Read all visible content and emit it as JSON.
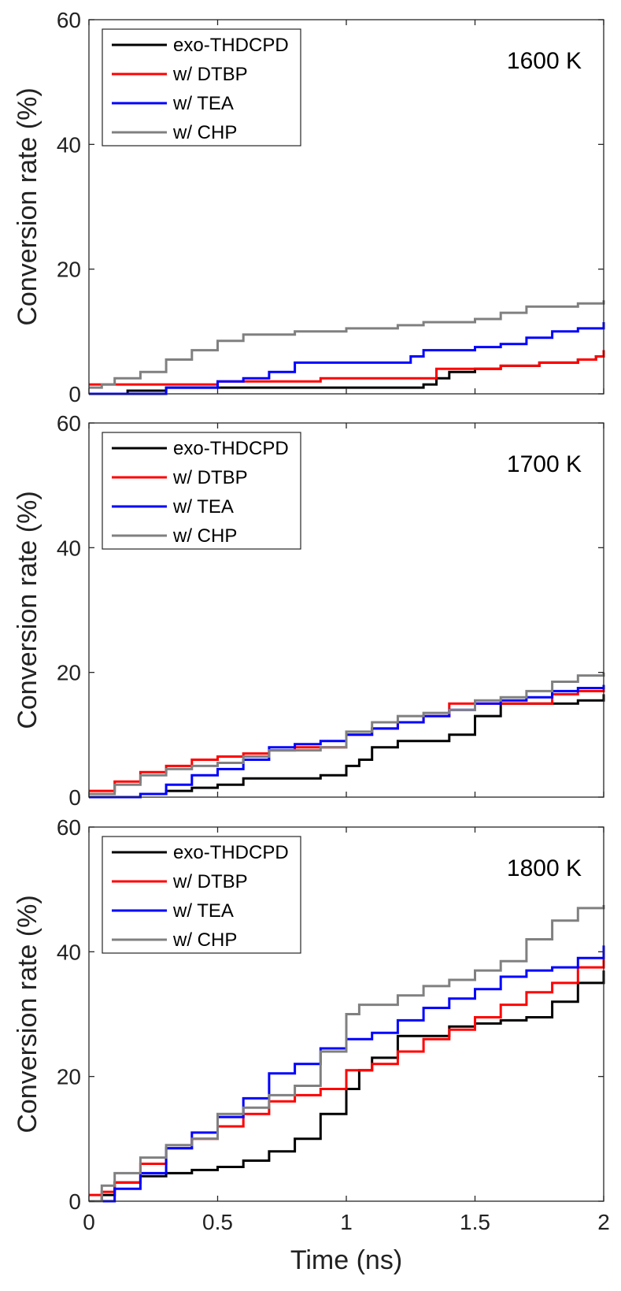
{
  "figure": {
    "colors": {
      "exo_thdcpd": "#000000",
      "dtbp": "#ff0000",
      "tea": "#0000ff",
      "chp": "#808080",
      "axis": "#262626"
    }
  },
  "chart_data": [
    {
      "type": "line",
      "title": "1600 K",
      "xlabel": "",
      "ylabel": "Conversion rate (%)",
      "xlim": [
        0,
        2
      ],
      "ylim": [
        0,
        60
      ],
      "xticks": [
        0,
        0.5,
        1,
        1.5,
        2
      ],
      "xtick_labels": [],
      "yticks": [
        0,
        20,
        40,
        60
      ],
      "ytick_labels": [
        "0",
        "20",
        "40",
        "60"
      ],
      "legend_position": "top-left",
      "series": [
        {
          "name": "exo-THDCPD",
          "color": "#000000",
          "x": [
            0,
            0.05,
            0.15,
            0.3,
            0.45,
            0.6,
            0.9,
            1.2,
            1.3,
            1.35,
            1.4,
            1.5,
            1.6,
            1.75,
            1.9,
            1.97,
            2.0
          ],
          "y": [
            0,
            0,
            0.5,
            1,
            1,
            1,
            1,
            1,
            1.5,
            2.5,
            3.5,
            4,
            4.5,
            5,
            5.5,
            6,
            7
          ]
        },
        {
          "name": "w/ DTBP",
          "color": "#ff0000",
          "x": [
            0,
            0.1,
            0.3,
            0.5,
            0.7,
            0.9,
            1.0,
            1.3,
            1.35,
            1.5,
            1.6,
            1.75,
            1.9,
            1.97,
            2.0
          ],
          "y": [
            1.5,
            1.5,
            1.5,
            2,
            2,
            2.5,
            2.5,
            2.5,
            4,
            4,
            4.5,
            5,
            5.5,
            6,
            7
          ]
        },
        {
          "name": "w/ TEA",
          "color": "#0000ff",
          "x": [
            0,
            0.2,
            0.3,
            0.5,
            0.6,
            0.7,
            0.8,
            1.0,
            1.15,
            1.25,
            1.3,
            1.5,
            1.6,
            1.7,
            1.8,
            1.9,
            2.0
          ],
          "y": [
            0,
            0,
            1,
            2,
            2.5,
            3.5,
            5,
            5,
            5,
            6,
            7,
            7.5,
            8,
            9,
            10,
            10.5,
            11.5
          ]
        },
        {
          "name": "w/ CHP",
          "color": "#808080",
          "x": [
            0,
            0.05,
            0.1,
            0.2,
            0.3,
            0.4,
            0.5,
            0.6,
            0.8,
            1.0,
            1.2,
            1.3,
            1.5,
            1.6,
            1.7,
            1.8,
            1.9,
            2.0
          ],
          "y": [
            1,
            1.5,
            2.5,
            3.5,
            5.5,
            7,
            8.5,
            9.5,
            10,
            10.5,
            11,
            11.5,
            12,
            13,
            14,
            14,
            14.5,
            15
          ]
        }
      ]
    },
    {
      "type": "line",
      "title": "1700 K",
      "xlabel": "",
      "ylabel": "Conversion rate (%)",
      "xlim": [
        0,
        2
      ],
      "ylim": [
        0,
        60
      ],
      "xticks": [
        0,
        0.5,
        1,
        1.5,
        2
      ],
      "xtick_labels": [],
      "yticks": [
        0,
        20,
        40,
        60
      ],
      "ytick_labels": [
        "0",
        "20",
        "40",
        "60"
      ],
      "legend_position": "top-left",
      "series": [
        {
          "name": "exo-THDCPD",
          "color": "#000000",
          "x": [
            0,
            0.15,
            0.2,
            0.3,
            0.4,
            0.5,
            0.6,
            0.7,
            0.85,
            0.9,
            1.0,
            1.05,
            1.1,
            1.2,
            1.3,
            1.4,
            1.5,
            1.6,
            1.7,
            1.8,
            1.9,
            2.0
          ],
          "y": [
            0,
            0,
            0.5,
            1,
            1.5,
            2,
            3,
            3,
            3,
            3.5,
            5,
            6,
            8,
            9,
            9,
            10,
            13,
            15,
            15,
            15,
            15.5,
            16.5
          ]
        },
        {
          "name": "w/ DTBP",
          "color": "#ff0000",
          "x": [
            0,
            0.1,
            0.2,
            0.3,
            0.4,
            0.5,
            0.6,
            0.7,
            0.8,
            0.9,
            1.0,
            1.1,
            1.2,
            1.3,
            1.4,
            1.5,
            1.6,
            1.7,
            1.8,
            1.9,
            2.0
          ],
          "y": [
            1,
            2.5,
            4,
            5,
            6,
            6.5,
            7,
            7.5,
            8,
            8,
            10,
            11,
            12,
            13,
            15,
            15,
            15,
            15,
            16.5,
            17,
            17.5
          ]
        },
        {
          "name": "w/ TEA",
          "color": "#0000ff",
          "x": [
            0,
            0.1,
            0.2,
            0.3,
            0.4,
            0.5,
            0.6,
            0.7,
            0.8,
            0.9,
            1.0,
            1.1,
            1.2,
            1.3,
            1.4,
            1.5,
            1.6,
            1.7,
            1.8,
            1.9,
            2.0
          ],
          "y": [
            0,
            0,
            0.5,
            2,
            3.5,
            4.5,
            6,
            8,
            8.5,
            9,
            10,
            11,
            12,
            13,
            14,
            15,
            15.5,
            16,
            17,
            17.5,
            18
          ]
        },
        {
          "name": "w/ CHP",
          "color": "#808080",
          "x": [
            0,
            0.1,
            0.2,
            0.3,
            0.4,
            0.5,
            0.6,
            0.7,
            0.8,
            0.9,
            1.0,
            1.1,
            1.2,
            1.3,
            1.4,
            1.5,
            1.6,
            1.7,
            1.8,
            1.9,
            2.0
          ],
          "y": [
            0.5,
            2,
            3.5,
            4.5,
            5,
            5.5,
            6.5,
            7.5,
            7.5,
            8,
            10.5,
            12,
            13,
            13.5,
            14,
            15.5,
            16,
            17,
            18.5,
            19.5,
            20
          ]
        }
      ]
    },
    {
      "type": "line",
      "title": "1800 K",
      "xlabel": "Time (ns)",
      "ylabel": "Conversion rate (%)",
      "xlim": [
        0,
        2
      ],
      "ylim": [
        0,
        60
      ],
      "xticks": [
        0,
        0.5,
        1,
        1.5,
        2
      ],
      "xtick_labels": [
        "0",
        "0.5",
        "1",
        "1.5",
        "2"
      ],
      "yticks": [
        0,
        20,
        40,
        60
      ],
      "ytick_labels": [
        "0",
        "20",
        "40",
        "60"
      ],
      "legend_position": "top-left",
      "series": [
        {
          "name": "exo-THDCPD",
          "color": "#000000",
          "x": [
            0,
            0.05,
            0.1,
            0.2,
            0.3,
            0.4,
            0.5,
            0.6,
            0.7,
            0.8,
            0.9,
            1.0,
            1.05,
            1.1,
            1.2,
            1.3,
            1.4,
            1.5,
            1.6,
            1.7,
            1.8,
            1.9,
            2.0
          ],
          "y": [
            0,
            1,
            3,
            4,
            4.5,
            5,
            5.5,
            6.5,
            8,
            10,
            14,
            18,
            21,
            23,
            26.5,
            26.5,
            28,
            28.5,
            29,
            29.5,
            32,
            35,
            37
          ]
        },
        {
          "name": "w/ DTBP",
          "color": "#ff0000",
          "x": [
            0,
            0.05,
            0.1,
            0.2,
            0.3,
            0.4,
            0.5,
            0.6,
            0.7,
            0.8,
            0.9,
            1.0,
            1.1,
            1.2,
            1.3,
            1.4,
            1.5,
            1.6,
            1.7,
            1.8,
            1.9,
            2.0
          ],
          "y": [
            1,
            1.5,
            3,
            6,
            8.5,
            10,
            12,
            14,
            16,
            17,
            18,
            21,
            22,
            24,
            26,
            27.5,
            29.5,
            31.5,
            33.5,
            35,
            37.5,
            39.5
          ]
        },
        {
          "name": "w/ TEA",
          "color": "#0000ff",
          "x": [
            0,
            0.05,
            0.1,
            0.2,
            0.3,
            0.4,
            0.5,
            0.6,
            0.7,
            0.8,
            0.9,
            1.0,
            1.1,
            1.2,
            1.3,
            1.4,
            1.5,
            1.6,
            1.7,
            1.8,
            1.9,
            2.0
          ],
          "y": [
            0,
            0,
            2,
            4.5,
            8.5,
            11,
            13.5,
            16.5,
            20.5,
            22,
            24.5,
            26,
            27,
            29,
            31,
            32.5,
            34,
            36,
            37,
            37.5,
            39,
            41
          ]
        },
        {
          "name": "w/ CHP",
          "color": "#808080",
          "x": [
            0,
            0.05,
            0.1,
            0.2,
            0.3,
            0.4,
            0.5,
            0.6,
            0.7,
            0.8,
            0.9,
            1.0,
            1.05,
            1.1,
            1.2,
            1.3,
            1.4,
            1.5,
            1.6,
            1.7,
            1.8,
            1.9,
            2.0
          ],
          "y": [
            0,
            2.5,
            4.5,
            7,
            9,
            10,
            14,
            15,
            17,
            18.5,
            24,
            30,
            31.5,
            31.5,
            33,
            34.5,
            35.5,
            37,
            38.5,
            42,
            45,
            47,
            47.5
          ]
        }
      ]
    }
  ]
}
